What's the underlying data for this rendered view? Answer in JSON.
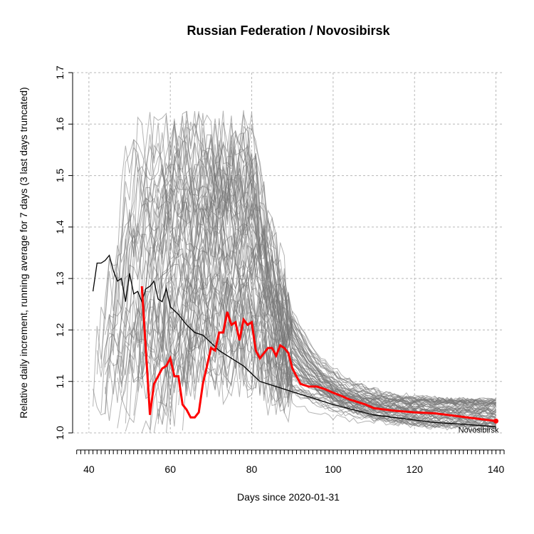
{
  "chart_data": {
    "type": "line",
    "title": "Russian Federation / Novosibirsk",
    "xlabel": "Days since 2020-01-31",
    "ylabel": "Relative daily increment, running average for 7 days (3 last days truncated)",
    "xlim": [
      36,
      142
    ],
    "ylim": [
      1.0,
      1.7
    ],
    "x_ticks": [
      40,
      60,
      80,
      100,
      120,
      140
    ],
    "y_ticks": [
      1.0,
      1.1,
      1.2,
      1.3,
      1.4,
      1.5,
      1.6,
      1.7
    ],
    "grid": true,
    "colors": {
      "highlight": "#ff0000",
      "national": "#000000",
      "regions": "#777777"
    },
    "series": [
      {
        "name": "Russian Federation",
        "x": [
          41,
          42,
          43,
          44,
          45,
          46,
          47,
          48,
          49,
          50,
          51,
          52,
          53,
          54,
          55,
          56,
          57,
          58,
          59,
          60,
          62,
          64,
          66,
          68,
          70,
          72,
          74,
          76,
          78,
          80,
          82,
          84,
          86,
          88,
          90,
          92,
          94,
          96,
          98,
          100,
          105,
          110,
          115,
          120,
          125,
          130,
          135,
          140
        ],
        "y": [
          1.275,
          1.33,
          1.33,
          1.335,
          1.345,
          1.315,
          1.295,
          1.3,
          1.255,
          1.31,
          1.27,
          1.275,
          1.255,
          1.28,
          1.285,
          1.295,
          1.26,
          1.255,
          1.28,
          1.245,
          1.23,
          1.21,
          1.195,
          1.19,
          1.175,
          1.16,
          1.15,
          1.14,
          1.13,
          1.115,
          1.1,
          1.095,
          1.09,
          1.085,
          1.08,
          1.075,
          1.07,
          1.065,
          1.06,
          1.055,
          1.045,
          1.035,
          1.03,
          1.025,
          1.02,
          1.018,
          1.015,
          1.012
        ]
      },
      {
        "name": "Novosibirsk",
        "x": [
          53,
          55,
          56,
          58,
          59,
          60,
          61,
          62,
          63,
          64,
          65,
          66,
          67,
          68,
          69,
          70,
          71,
          72,
          73,
          74,
          75,
          76,
          77,
          78,
          79,
          80,
          81,
          82,
          83,
          84,
          85,
          86,
          87,
          88,
          89,
          90,
          92,
          94,
          96,
          98,
          100,
          102,
          104,
          106,
          108,
          110,
          115,
          120,
          125,
          130,
          135,
          140
        ],
        "y": [
          1.285,
          1.035,
          1.095,
          1.125,
          1.13,
          1.145,
          1.11,
          1.11,
          1.055,
          1.045,
          1.03,
          1.03,
          1.04,
          1.095,
          1.13,
          1.165,
          1.16,
          1.195,
          1.195,
          1.235,
          1.21,
          1.215,
          1.18,
          1.22,
          1.21,
          1.215,
          1.16,
          1.145,
          1.155,
          1.165,
          1.165,
          1.15,
          1.17,
          1.165,
          1.155,
          1.125,
          1.095,
          1.09,
          1.09,
          1.085,
          1.078,
          1.072,
          1.065,
          1.06,
          1.055,
          1.048,
          1.043,
          1.04,
          1.038,
          1.033,
          1.028,
          1.023
        ]
      }
    ],
    "annotations": [
      "Novosibirsk"
    ]
  }
}
